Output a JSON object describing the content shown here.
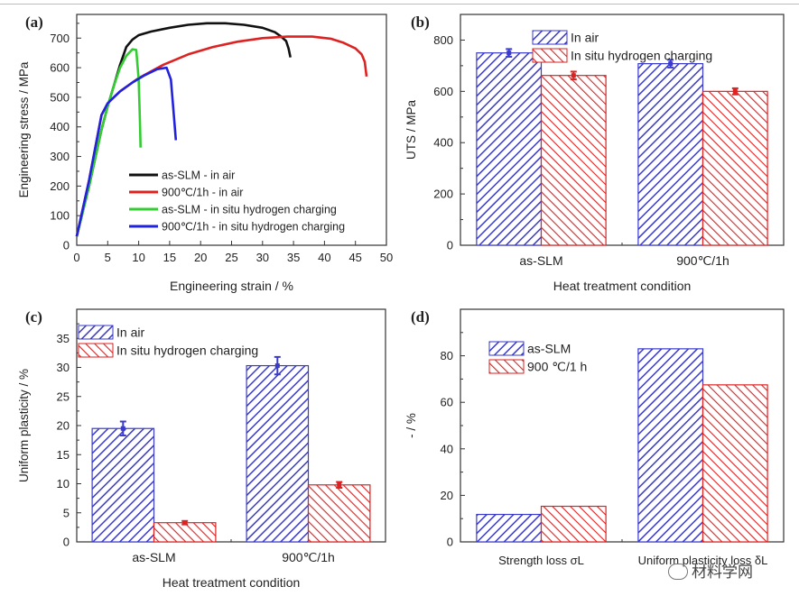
{
  "watermark": "材料学网",
  "chart_data": [
    {
      "panel": "(a)",
      "type": "line",
      "xlabel": "Engineering strain / %",
      "ylabel": "Engineering stress / MPa",
      "xlim": [
        0,
        50
      ],
      "ylim": [
        0,
        780
      ],
      "xticks": [
        0,
        5,
        10,
        15,
        20,
        25,
        30,
        35,
        40,
        45,
        50
      ],
      "yticks": [
        0,
        100,
        200,
        300,
        400,
        500,
        600,
        700
      ],
      "legend_position": "bottom-center",
      "series": [
        {
          "name": "as-SLM - in air",
          "color": "#111111",
          "x": [
            0,
            2,
            4,
            5,
            6,
            7,
            8,
            9,
            10,
            12,
            15,
            18,
            21,
            24,
            27,
            30,
            32,
            33,
            33.8,
            34.2,
            34.5
          ],
          "y": [
            30,
            200,
            390,
            470,
            540,
            610,
            670,
            695,
            710,
            722,
            735,
            745,
            750,
            750,
            745,
            735,
            720,
            705,
            690,
            665,
            635
          ]
        },
        {
          "name": "900℃/1h - in air",
          "color": "#dd2222",
          "x": [
            0,
            2,
            4,
            5,
            7,
            10,
            14,
            18,
            22,
            26,
            30,
            34,
            38,
            41,
            43,
            45,
            46,
            46.5,
            46.8
          ],
          "y": [
            30,
            220,
            440,
            480,
            520,
            565,
            610,
            645,
            670,
            688,
            700,
            705,
            705,
            698,
            685,
            665,
            645,
            620,
            570
          ]
        },
        {
          "name": "as-SLM - in situ hydrogen charging",
          "color": "#33cc33",
          "x": [
            0,
            2,
            4,
            5,
            6,
            7,
            8,
            9,
            9.6,
            10.0,
            10.2,
            10.3
          ],
          "y": [
            30,
            200,
            390,
            470,
            540,
            600,
            640,
            662,
            660,
            560,
            420,
            330
          ]
        },
        {
          "name": "900℃/1h - in situ hydrogen charging",
          "color": "#2222dd",
          "x": [
            0,
            2,
            4,
            5,
            7,
            9,
            11,
            13,
            14.5,
            15.2,
            15.6,
            16.0
          ],
          "y": [
            30,
            220,
            440,
            480,
            520,
            550,
            575,
            595,
            600,
            560,
            460,
            355
          ]
        }
      ]
    },
    {
      "panel": "(b)",
      "type": "bar",
      "xlabel": "Heat treatment condition",
      "ylabel": "UTS / MPa",
      "ylim": [
        0,
        900
      ],
      "yticks": [
        0,
        200,
        400,
        600,
        800
      ],
      "categories": [
        "as-SLM",
        "900℃/1h"
      ],
      "series": [
        {
          "name": "In air",
          "color": "#3a3acc",
          "values": [
            750,
            708
          ],
          "errors": [
            15,
            15
          ]
        },
        {
          "name": "In situ hydrogen charging",
          "color": "#dd2222",
          "values": [
            662,
            600
          ],
          "errors": [
            15,
            12
          ]
        }
      ]
    },
    {
      "panel": "(c)",
      "type": "bar",
      "xlabel": "Heat treatment condition",
      "ylabel": "Uniform plasticity / %",
      "ylim": [
        0,
        40
      ],
      "yticks": [
        0,
        5,
        10,
        15,
        20,
        25,
        30,
        35
      ],
      "categories": [
        "as-SLM",
        "900℃/1h"
      ],
      "series": [
        {
          "name": "In air",
          "color": "#3a3acc",
          "values": [
            19.5,
            30.3
          ],
          "errors": [
            1.2,
            1.5
          ]
        },
        {
          "name": "In situ hydrogen charging",
          "color": "#dd2222",
          "values": [
            3.3,
            9.8
          ],
          "errors": [
            0.3,
            0.5
          ]
        }
      ]
    },
    {
      "panel": "(d)",
      "type": "bar",
      "xlabel": "",
      "ylabel": "- / %",
      "ylim": [
        0,
        100
      ],
      "yticks": [
        0,
        20,
        40,
        60,
        80
      ],
      "categories": [
        "Strength loss σL",
        "Uniform plasticity loss δL"
      ],
      "series": [
        {
          "name": "as-SLM",
          "color": "#3a3acc",
          "values": [
            11.8,
            83
          ]
        },
        {
          "name": "900 ℃/1 h",
          "color": "#dd2222",
          "values": [
            15.3,
            67.5
          ]
        }
      ]
    }
  ]
}
